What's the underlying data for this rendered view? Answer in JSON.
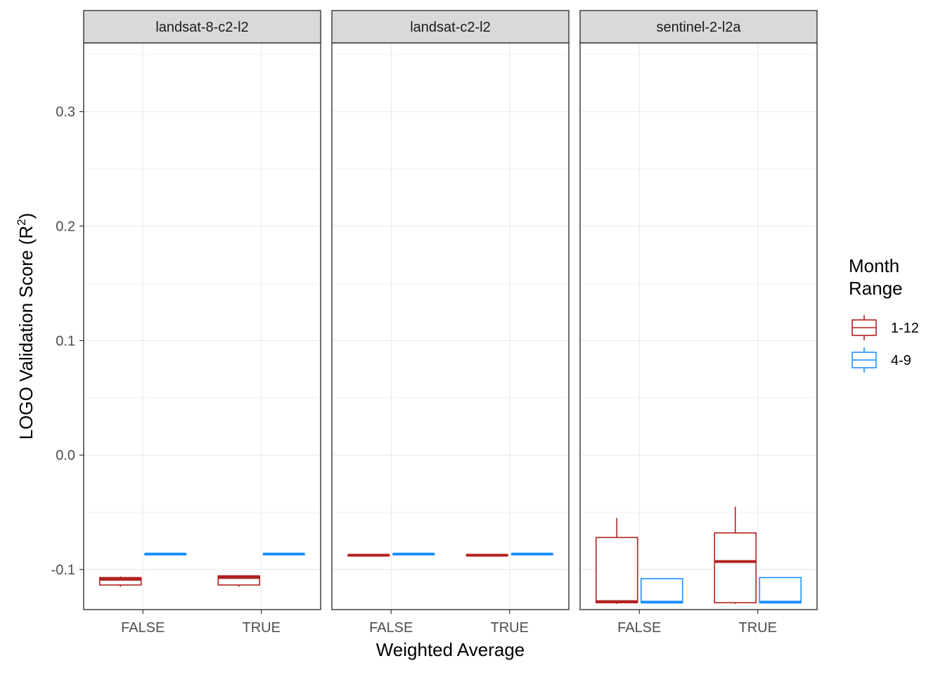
{
  "chart_data": {
    "type": "boxplot",
    "xlabel": "Weighted Average",
    "ylabel": "LOGO Validation Score (R",
    "ylabel_superscript": "2",
    "ylabel_suffix": ")",
    "ylim": [
      -0.135,
      0.36
    ],
    "y_ticks": [
      -0.1,
      0.0,
      0.1,
      0.2,
      0.3
    ],
    "y_tick_labels": [
      "-0.1",
      "0.0",
      "0.1",
      "0.2",
      "0.3"
    ],
    "categories": [
      "FALSE",
      "TRUE"
    ],
    "grid": true,
    "legend": {
      "title_line1": "Month",
      "title_line2": "Range",
      "placement": "right",
      "items": [
        {
          "label": "1-12",
          "color": "#B22222"
        },
        {
          "label": "4-9",
          "color": "#1E90FF"
        }
      ]
    },
    "series_colors": {
      "1-12": "#B22222",
      "4-9": "#1E90FF"
    },
    "panels": [
      {
        "title": "landsat-8-c2-l2",
        "boxes": [
          {
            "category": "FALSE",
            "series": "1-12",
            "lower": -0.115,
            "q1": -0.1135,
            "median": -0.1085,
            "q3": -0.107,
            "upper": -0.106
          },
          {
            "category": "FALSE",
            "series": "4-9",
            "lower": -0.0865,
            "q1": -0.0865,
            "median": -0.0865,
            "q3": -0.0865,
            "upper": -0.0865
          },
          {
            "category": "TRUE",
            "series": "1-12",
            "lower": -0.115,
            "q1": -0.1135,
            "median": -0.107,
            "q3": -0.1055,
            "upper": -0.105
          },
          {
            "category": "TRUE",
            "series": "4-9",
            "lower": -0.0865,
            "q1": -0.0865,
            "median": -0.0865,
            "q3": -0.0865,
            "upper": -0.0865
          }
        ]
      },
      {
        "title": "landsat-c2-l2",
        "boxes": [
          {
            "category": "FALSE",
            "series": "1-12",
            "lower": -0.0875,
            "q1": -0.0875,
            "median": -0.0875,
            "q3": -0.0875,
            "upper": -0.0875
          },
          {
            "category": "FALSE",
            "series": "4-9",
            "lower": -0.0865,
            "q1": -0.0865,
            "median": -0.0865,
            "q3": -0.0865,
            "upper": -0.0865
          },
          {
            "category": "TRUE",
            "series": "1-12",
            "lower": -0.0875,
            "q1": -0.0875,
            "median": -0.0875,
            "q3": -0.0875,
            "upper": -0.0875
          },
          {
            "category": "TRUE",
            "series": "4-9",
            "lower": -0.0865,
            "q1": -0.0865,
            "median": -0.0865,
            "q3": -0.0865,
            "upper": -0.0865
          }
        ]
      },
      {
        "title": "sentinel-2-l2a",
        "boxes": [
          {
            "category": "FALSE",
            "series": "1-12",
            "lower": -0.13,
            "q1": -0.129,
            "median": -0.128,
            "q3": -0.072,
            "upper": -0.055
          },
          {
            "category": "FALSE",
            "series": "4-9",
            "lower": -0.129,
            "q1": -0.129,
            "median": -0.1285,
            "q3": -0.108,
            "upper": -0.108
          },
          {
            "category": "TRUE",
            "series": "1-12",
            "lower": -0.13,
            "q1": -0.129,
            "median": -0.093,
            "q3": -0.068,
            "upper": -0.045
          },
          {
            "category": "TRUE",
            "series": "4-9",
            "lower": -0.129,
            "q1": -0.129,
            "median": -0.1285,
            "q3": -0.107,
            "upper": -0.107
          }
        ]
      }
    ]
  }
}
